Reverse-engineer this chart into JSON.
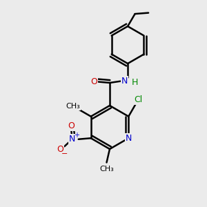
{
  "bg_color": "#ebebeb",
  "bond_color": "#000000",
  "bond_width": 1.8,
  "atom_colors": {
    "C": "#000000",
    "N": "#0000cc",
    "O": "#cc0000",
    "Cl": "#008800",
    "H": "#008800"
  }
}
